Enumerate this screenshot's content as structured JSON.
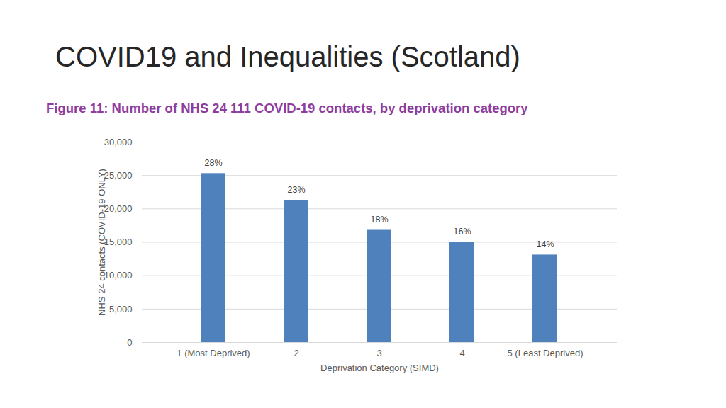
{
  "chart_data": {
    "type": "bar",
    "title": "COVID19 and Inequalities (Scotland)",
    "subtitle": "Figure 11: Number of NHS 24 111 COVID-19 contacts, by deprivation category",
    "x_label": "Deprivation Category (SIMD)",
    "y_label": "NHS 24 contacts (COVID-19 ONLY)",
    "categories": [
      "1 (Most Deprived)",
      "2",
      "3",
      "4",
      "5 (Least Deprived)"
    ],
    "values": [
      25300,
      21300,
      16800,
      15000,
      13100
    ],
    "annotations": [
      "28%",
      "23%",
      "18%",
      "16%",
      "14%"
    ],
    "color": "#4f81bd",
    "ylim": [
      0,
      30000
    ],
    "yticks": [
      0,
      {
        "value": 5000,
        "label": "5,000"
      },
      {
        "value": 10000,
        "label": "10,000"
      },
      {
        "value": 15000,
        "label": "15,000"
      },
      {
        "value": 20000,
        "label": "20,000"
      },
      {
        "value": 25000,
        "label": "25,000"
      },
      {
        "value": 30000,
        "label": "30,000"
      }
    ],
    "grid": true
  }
}
